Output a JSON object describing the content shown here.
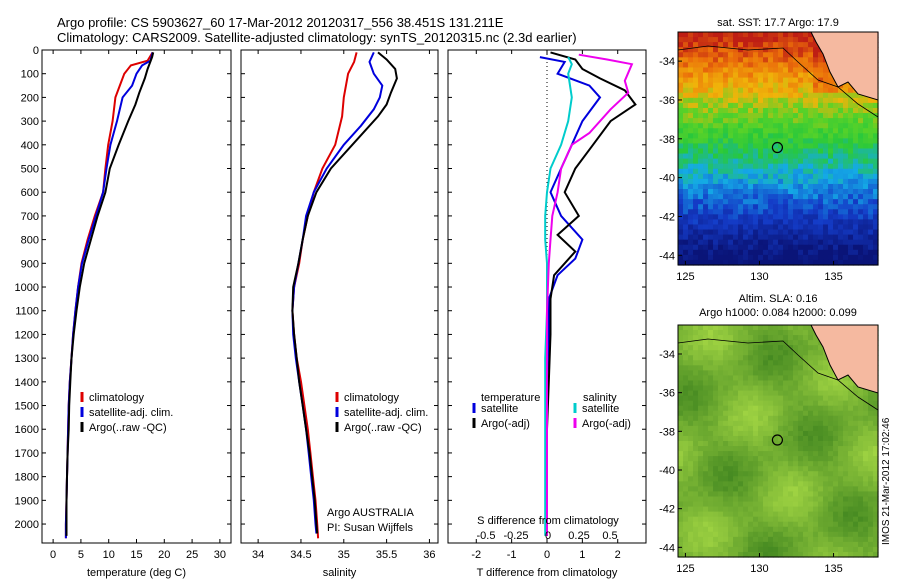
{
  "header": {
    "title_line1": "Argo profile: CS 5903627_60 17-Mar-2012 20120317_556 38.451S 131.211E",
    "title_line2": "Climatology: CARS2009. Satellite-adjusted climatology: synTS_20120315.nc (2.3d earlier)"
  },
  "side_label": "IMOS 21-Mar-2012 17:02:46",
  "colors": {
    "climatology": "#dd0000",
    "satellite": "#0000dd",
    "argo": "#000000",
    "sat_salinity": "#00cccc",
    "argo_salinity": "#ee00ee"
  },
  "chart_data": [
    {
      "type": "line",
      "xlabel": "temperature (deg C)",
      "ylabel": "",
      "xlim": [
        -2,
        32
      ],
      "ylim": [
        2080,
        0
      ],
      "xticks": [
        "0",
        "5",
        "10",
        "15",
        "20",
        "25",
        "30"
      ],
      "yticks": [
        "0",
        "100",
        "200",
        "300",
        "400",
        "500",
        "600",
        "700",
        "800",
        "900",
        "1000",
        "1100",
        "1200",
        "1300",
        "1400",
        "1500",
        "1600",
        "1700",
        "1800",
        "1900",
        "2000"
      ],
      "legend": [
        "climatology",
        "satellite-adj. clim.",
        "Argo(..raw -QC)"
      ],
      "series": [
        {
          "name": "climatology",
          "color": "#dd0000",
          "points": [
            [
              17.9,
              10
            ],
            [
              17,
              45
            ],
            [
              14,
              65
            ],
            [
              12.8,
              100
            ],
            [
              12,
              150
            ],
            [
              11.2,
              200
            ],
            [
              10.7,
              300
            ],
            [
              9.9,
              400
            ],
            [
              9.4,
              500
            ],
            [
              9.0,
              600
            ],
            [
              7.5,
              700
            ],
            [
              6.2,
              800
            ],
            [
              5.1,
              900
            ],
            [
              4.5,
              1000
            ],
            [
              4.0,
              1100
            ],
            [
              3.6,
              1200
            ],
            [
              3.3,
              1300
            ],
            [
              3.0,
              1400
            ],
            [
              2.8,
              1500
            ],
            [
              2.7,
              1600
            ],
            [
              2.6,
              1700
            ],
            [
              2.5,
              1800
            ],
            [
              2.4,
              1900
            ],
            [
              2.3,
              2000
            ],
            [
              2.3,
              2060
            ]
          ]
        },
        {
          "name": "satellite-adj. clim.",
          "color": "#0000dd",
          "points": [
            [
              17.9,
              10
            ],
            [
              17.5,
              45
            ],
            [
              16,
              65
            ],
            [
              15,
              100
            ],
            [
              14.2,
              150
            ],
            [
              12.5,
              200
            ],
            [
              11.5,
              300
            ],
            [
              10.3,
              400
            ],
            [
              9.6,
              500
            ],
            [
              9.0,
              600
            ],
            [
              7.7,
              700
            ],
            [
              6.4,
              800
            ],
            [
              5.2,
              900
            ],
            [
              4.5,
              1000
            ],
            [
              4.0,
              1100
            ],
            [
              3.6,
              1200
            ],
            [
              3.3,
              1300
            ],
            [
              3.0,
              1400
            ],
            [
              2.8,
              1500
            ],
            [
              2.7,
              1600
            ],
            [
              2.6,
              1700
            ],
            [
              2.5,
              1800
            ],
            [
              2.4,
              1900
            ],
            [
              2.3,
              2000
            ],
            [
              2.3,
              2060
            ]
          ]
        },
        {
          "name": "Argo(..raw -QC)",
          "color": "#000000",
          "points": [
            [
              18.0,
              10
            ],
            [
              17.8,
              30
            ],
            [
              17.0,
              80
            ],
            [
              16.5,
              120
            ],
            [
              15.5,
              180
            ],
            [
              14.8,
              230
            ],
            [
              13.5,
              300
            ],
            [
              11.8,
              400
            ],
            [
              10.2,
              500
            ],
            [
              9.4,
              600
            ],
            [
              8.0,
              700
            ],
            [
              6.8,
              800
            ],
            [
              5.6,
              900
            ],
            [
              4.8,
              1000
            ],
            [
              4.2,
              1100
            ],
            [
              3.7,
              1200
            ],
            [
              3.3,
              1300
            ],
            [
              3.1,
              1400
            ],
            [
              2.9,
              1500
            ],
            [
              2.8,
              1600
            ],
            [
              2.6,
              1700
            ],
            [
              2.5,
              1800
            ],
            [
              2.4,
              1900
            ],
            [
              2.4,
              2000
            ],
            [
              2.4,
              2050
            ]
          ]
        }
      ]
    },
    {
      "type": "line",
      "xlabel": "salinity",
      "ylabel": "",
      "xlim": [
        33.8,
        36.1
      ],
      "ylim": [
        2080,
        0
      ],
      "xticks": [
        "34",
        "34.5",
        "35",
        "35.5",
        "36"
      ],
      "legend": [
        "climatology",
        "satellite-adj. clim.",
        "Argo(..raw -QC)"
      ],
      "annotation_line1": "Argo AUSTRALIA",
      "annotation_line2": "PI: Susan Wijffels",
      "series": [
        {
          "name": "climatology",
          "color": "#dd0000",
          "points": [
            [
              35.15,
              10
            ],
            [
              35.12,
              50
            ],
            [
              35.05,
              100
            ],
            [
              35.0,
              200
            ],
            [
              34.98,
              280
            ],
            [
              34.9,
              400
            ],
            [
              34.75,
              500
            ],
            [
              34.65,
              600
            ],
            [
              34.58,
              700
            ],
            [
              34.52,
              800
            ],
            [
              34.48,
              900
            ],
            [
              34.42,
              1000
            ],
            [
              34.4,
              1100
            ],
            [
              34.42,
              1200
            ],
            [
              34.45,
              1300
            ],
            [
              34.5,
              1400
            ],
            [
              34.54,
              1500
            ],
            [
              34.58,
              1600
            ],
            [
              34.61,
              1700
            ],
            [
              34.64,
              1800
            ],
            [
              34.67,
              1900
            ],
            [
              34.69,
              2000
            ],
            [
              34.7,
              2060
            ]
          ]
        },
        {
          "name": "satellite-adj. clim.",
          "color": "#0000dd",
          "points": [
            [
              35.35,
              10
            ],
            [
              35.3,
              50
            ],
            [
              35.35,
              100
            ],
            [
              35.45,
              150
            ],
            [
              35.42,
              200
            ],
            [
              35.35,
              250
            ],
            [
              35.2,
              320
            ],
            [
              35.0,
              400
            ],
            [
              34.8,
              500
            ],
            [
              34.65,
              600
            ],
            [
              34.56,
              700
            ],
            [
              34.52,
              800
            ],
            [
              34.47,
              900
            ],
            [
              34.42,
              1000
            ],
            [
              34.4,
              1100
            ],
            [
              34.41,
              1200
            ],
            [
              34.44,
              1300
            ],
            [
              34.48,
              1400
            ],
            [
              34.52,
              1500
            ],
            [
              34.56,
              1600
            ],
            [
              34.59,
              1700
            ],
            [
              34.62,
              1800
            ],
            [
              34.65,
              1900
            ],
            [
              34.67,
              2000
            ],
            [
              34.68,
              2040
            ]
          ]
        },
        {
          "name": "Argo(..raw -QC)",
          "color": "#000000",
          "points": [
            [
              35.4,
              10
            ],
            [
              35.5,
              40
            ],
            [
              35.6,
              80
            ],
            [
              35.62,
              120
            ],
            [
              35.55,
              180
            ],
            [
              35.5,
              230
            ],
            [
              35.4,
              280
            ],
            [
              35.1,
              400
            ],
            [
              34.85,
              500
            ],
            [
              34.68,
              600
            ],
            [
              34.58,
              700
            ],
            [
              34.52,
              800
            ],
            [
              34.47,
              900
            ],
            [
              34.41,
              1000
            ],
            [
              34.4,
              1100
            ],
            [
              34.42,
              1200
            ],
            [
              34.45,
              1300
            ],
            [
              34.48,
              1400
            ],
            [
              34.52,
              1500
            ],
            [
              34.56,
              1600
            ],
            [
              34.6,
              1700
            ],
            [
              34.63,
              1800
            ],
            [
              34.66,
              1900
            ],
            [
              34.68,
              2000
            ],
            [
              34.69,
              2040
            ]
          ]
        }
      ]
    },
    {
      "type": "line",
      "xlabel": "T difference from climatology",
      "ylabel": "",
      "xlim": [
        -2.8,
        2.8
      ],
      "ylim": [
        2080,
        0
      ],
      "xticks": [
        "-2",
        "-1",
        "0",
        "1",
        "2"
      ],
      "top_label": "S difference from climatology",
      "s_ticks": [
        "-0.5",
        "-0.25",
        "0",
        "0.25",
        "0.5"
      ],
      "legend_temperature_title": "temperature",
      "legend_salinity_title": "salinity",
      "legend": [
        "satellite",
        "Argo(-adj)",
        "satellite",
        "Argo(-adj)"
      ],
      "series": [
        {
          "name": "temperature satellite",
          "color": "#0000dd",
          "points": [
            [
              -0.2,
              30
            ],
            [
              0.5,
              50
            ],
            [
              0.3,
              100
            ],
            [
              1.2,
              150
            ],
            [
              1.5,
              200
            ],
            [
              1.0,
              300
            ],
            [
              0.7,
              400
            ],
            [
              0.4,
              500
            ],
            [
              0.1,
              600
            ],
            [
              0.4,
              700
            ],
            [
              1.0,
              800
            ],
            [
              0.8,
              880
            ],
            [
              0.3,
              950
            ],
            [
              0.05,
              1050
            ],
            [
              0.05,
              1200
            ],
            [
              0.0,
              1400
            ],
            [
              0.0,
              1600
            ],
            [
              0.0,
              1800
            ],
            [
              0.0,
              2000
            ],
            [
              0.0,
              2050
            ]
          ]
        },
        {
          "name": "temperature Argo(-adj)",
          "color": "#000000",
          "points": [
            [
              0.1,
              10
            ],
            [
              0.8,
              40
            ],
            [
              1.0,
              80
            ],
            [
              1.5,
              120
            ],
            [
              2.2,
              170
            ],
            [
              2.5,
              230
            ],
            [
              1.8,
              300
            ],
            [
              1.3,
              400
            ],
            [
              0.8,
              500
            ],
            [
              0.5,
              600
            ],
            [
              0.9,
              700
            ],
            [
              0.3,
              780
            ],
            [
              0.8,
              850
            ],
            [
              0.2,
              950
            ],
            [
              0.1,
              1050
            ],
            [
              0.1,
              1200
            ],
            [
              0.05,
              1400
            ],
            [
              0.0,
              1600
            ],
            [
              0.0,
              1800
            ],
            [
              0.0,
              2000
            ],
            [
              0.0,
              2050
            ]
          ]
        },
        {
          "name": "salinity satellite",
          "color": "#00cccc",
          "points": [
            [
              0.6,
              30
            ],
            [
              0.7,
              60
            ],
            [
              0.6,
              100
            ],
            [
              0.7,
              200
            ],
            [
              0.6,
              300
            ],
            [
              0.4,
              400
            ],
            [
              0.1,
              500
            ],
            [
              0.0,
              600
            ],
            [
              -0.05,
              700
            ],
            [
              -0.05,
              800
            ],
            [
              0.0,
              900
            ],
            [
              0.0,
              1100
            ],
            [
              -0.05,
              1300
            ],
            [
              -0.05,
              1500
            ],
            [
              -0.05,
              1700
            ],
            [
              -0.05,
              1900
            ],
            [
              -0.05,
              2050
            ]
          ]
        },
        {
          "name": "salinity Argo(-adj)",
          "color": "#ee00ee",
          "points": [
            [
              0.9,
              20
            ],
            [
              1.7,
              40
            ],
            [
              2.4,
              60
            ],
            [
              2.2,
              130
            ],
            [
              2.3,
              180
            ],
            [
              1.8,
              250
            ],
            [
              1.2,
              350
            ],
            [
              0.7,
              400
            ],
            [
              0.4,
              500
            ],
            [
              0.3,
              600
            ],
            [
              0.15,
              700
            ],
            [
              0.1,
              800
            ],
            [
              0.05,
              900
            ],
            [
              0.0,
              1100
            ],
            [
              0.0,
              1300
            ],
            [
              0.0,
              1500
            ],
            [
              0.0,
              1700
            ],
            [
              0.0,
              1900
            ],
            [
              0.0,
              2050
            ]
          ]
        }
      ]
    },
    {
      "type": "heatmap",
      "title": "sat. SST: 17.7 Argo: 17.9",
      "xticks": [
        "125",
        "130",
        "135"
      ],
      "yticks": [
        "-34",
        "-36",
        "-38",
        "-40",
        "-42",
        "-44"
      ],
      "xlim": [
        124.5,
        138
      ],
      "ylim": [
        -44.5,
        -32.5
      ],
      "marker": [
        131.21,
        -38.45
      ]
    },
    {
      "type": "heatmap",
      "title_line1": "Altim. SLA: 0.16",
      "title_line2": "Argo h1000: 0.084 h2000: 0.099",
      "xticks": [
        "125",
        "130",
        "135"
      ],
      "yticks": [
        "-34",
        "-36",
        "-38",
        "-40",
        "-42",
        "-44"
      ],
      "xlim": [
        124.5,
        138
      ],
      "ylim": [
        -44.5,
        -32.5
      ],
      "marker": [
        131.21,
        -38.45
      ]
    }
  ]
}
